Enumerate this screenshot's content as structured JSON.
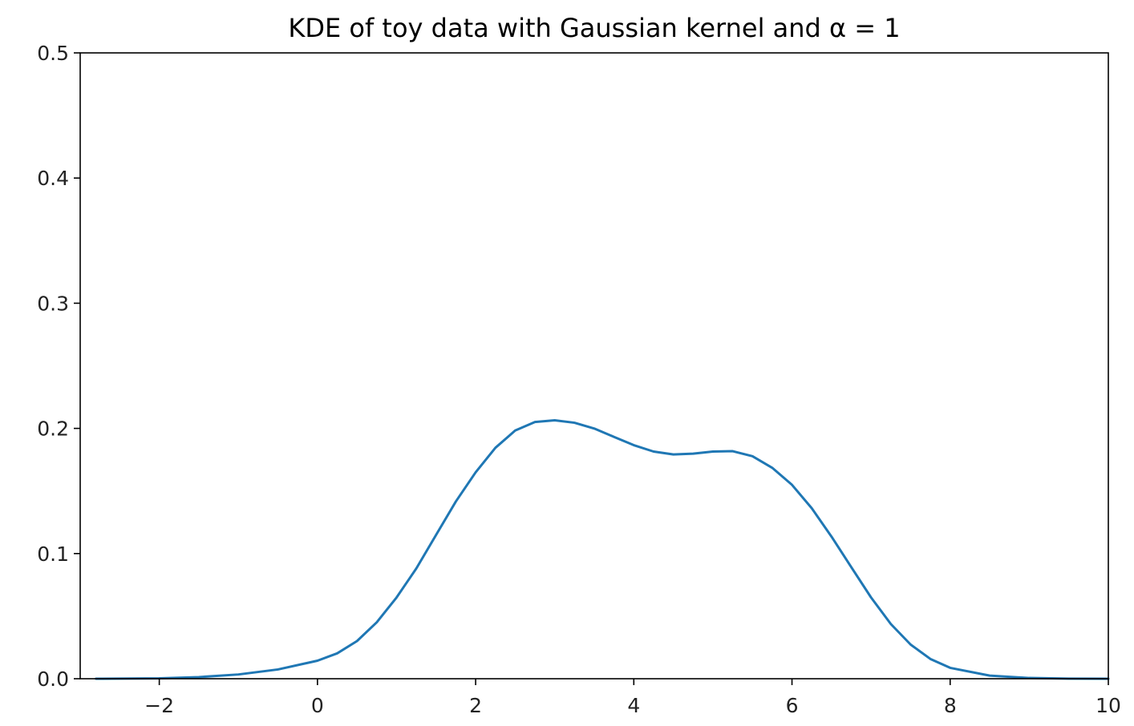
{
  "chart_data": {
    "type": "line",
    "title": "KDE of toy data with Gaussian kernel and α = 1",
    "xlabel": "",
    "ylabel": "",
    "xlim": [
      -3,
      10
    ],
    "ylim": [
      0,
      0.5
    ],
    "xticks": [
      -2,
      0,
      2,
      4,
      6,
      8,
      10
    ],
    "xtick_labels": [
      "−2",
      "0",
      "2",
      "4",
      "6",
      "8",
      "10"
    ],
    "yticks": [
      0.0,
      0.1,
      0.2,
      0.3,
      0.4,
      0.5
    ],
    "ytick_labels": [
      "0.0",
      "0.1",
      "0.2",
      "0.3",
      "0.4",
      "0.5"
    ],
    "grid": false,
    "series": [
      {
        "color": "#1f77b4",
        "x": [
          -2.8,
          -2.0,
          -1.5,
          -1.0,
          -0.5,
          0.0,
          0.25,
          0.5,
          0.75,
          1.0,
          1.25,
          1.5,
          1.75,
          2.0,
          2.25,
          2.5,
          2.75,
          3.0,
          3.25,
          3.5,
          3.75,
          4.0,
          4.25,
          4.5,
          4.75,
          5.0,
          5.25,
          5.5,
          5.75,
          6.0,
          6.25,
          6.5,
          6.75,
          7.0,
          7.25,
          7.5,
          7.75,
          8.0,
          8.5,
          9.0,
          9.5,
          10.0
        ],
        "y": [
          0.0,
          0.0003,
          0.0013,
          0.0034,
          0.0074,
          0.0144,
          0.0203,
          0.0301,
          0.0451,
          0.0649,
          0.0881,
          0.1149,
          0.1416,
          0.1649,
          0.1845,
          0.1983,
          0.2051,
          0.2065,
          0.2045,
          0.1999,
          0.1932,
          0.1866,
          0.1815,
          0.1792,
          0.1798,
          0.1815,
          0.1818,
          0.1778,
          0.1685,
          0.1549,
          0.1362,
          0.1135,
          0.0891,
          0.0649,
          0.0437,
          0.0273,
          0.0158,
          0.0087,
          0.0025,
          0.0006,
          0.0001,
          0.0
        ]
      }
    ]
  }
}
